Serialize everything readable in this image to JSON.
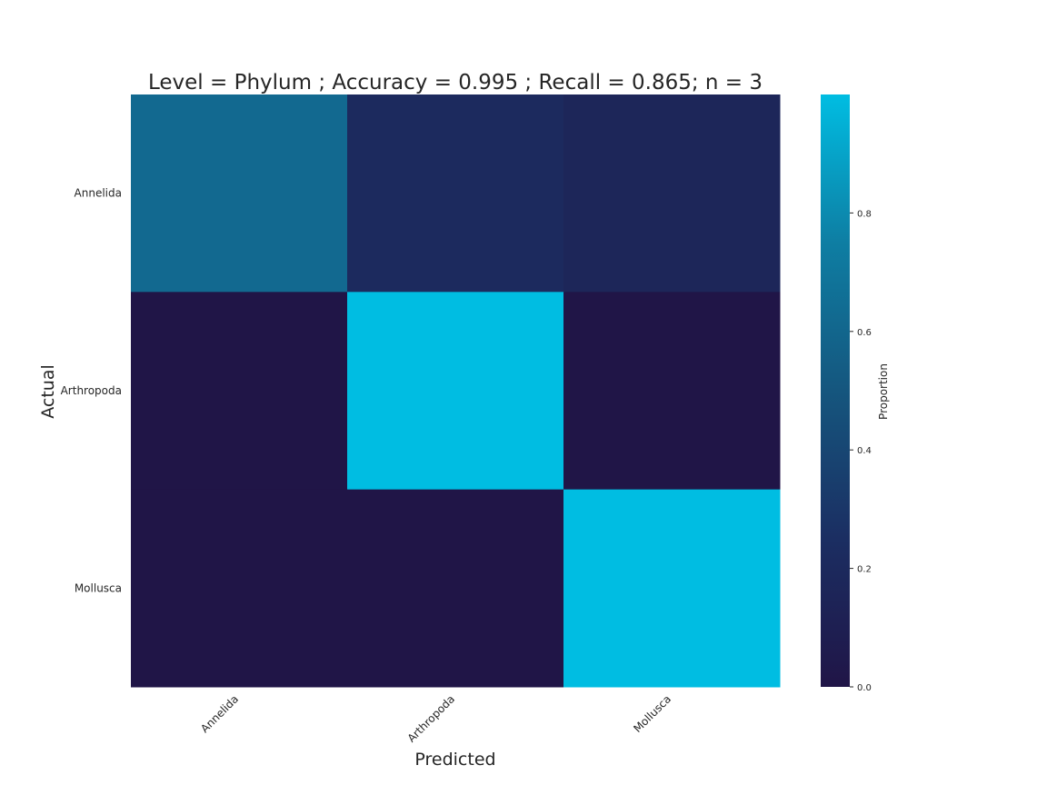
{
  "chart_data": {
    "type": "heatmap",
    "title": "Level = Phylum ; Accuracy = 0.995 ; Recall = 0.865; n = 3",
    "xlabel": "Predicted",
    "ylabel": "Actual",
    "x_categories": [
      "Annelida",
      "Arthropoda",
      "Mollusca"
    ],
    "y_categories": [
      "Annelida",
      "Arthropoda",
      "Mollusca"
    ],
    "values": [
      [
        0.62,
        0.21,
        0.17
      ],
      [
        0.0,
        1.0,
        0.0
      ],
      [
        0.0,
        0.0,
        1.0
      ]
    ],
    "colorbar": {
      "label": "Proportion",
      "range": [
        0,
        1.0
      ],
      "ticks": [
        "0.0",
        "0.2",
        "0.4",
        "0.6",
        "0.8"
      ],
      "colors": [
        "#201547",
        "#1b2e62",
        "#15567e",
        "#0e7ea3",
        "#00bde2"
      ]
    }
  }
}
